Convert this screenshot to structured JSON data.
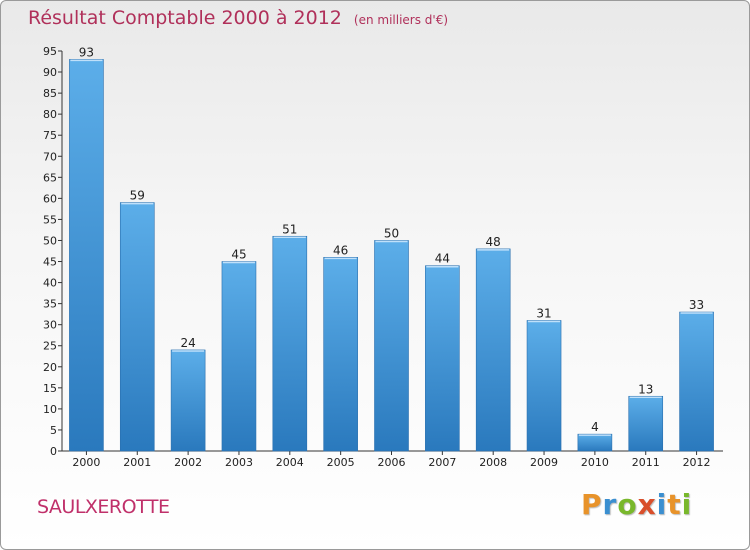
{
  "header": {
    "title": "Résultat Comptable 2000 à 2012",
    "subtitle": "(en milliers d'€)"
  },
  "commune": "SAULXEROTTE",
  "logo": {
    "letters": [
      "P",
      "r",
      "o",
      "x",
      "i",
      "t",
      "i"
    ],
    "colors": [
      "#e8932a",
      "#3b8fd0",
      "#79b82c",
      "#d94f2b",
      "#3b8fd0",
      "#e8932a",
      "#79b82c"
    ]
  },
  "chart_data": {
    "type": "bar",
    "title": "Résultat Comptable 2000 à 2012",
    "subtitle": "(en milliers d'€)",
    "categories": [
      "2000",
      "2001",
      "2002",
      "2003",
      "2004",
      "2005",
      "2006",
      "2007",
      "2008",
      "2009",
      "2010",
      "2011",
      "2012"
    ],
    "values": [
      93,
      59,
      24,
      45,
      51,
      46,
      50,
      44,
      48,
      31,
      4,
      13,
      33
    ],
    "ylim": [
      0,
      95
    ],
    "yticks": [
      0,
      5,
      10,
      15,
      20,
      25,
      30,
      35,
      40,
      45,
      50,
      55,
      60,
      65,
      70,
      75,
      80,
      85,
      90,
      95
    ],
    "grid": false,
    "bar_color": "#3d8fd6"
  }
}
